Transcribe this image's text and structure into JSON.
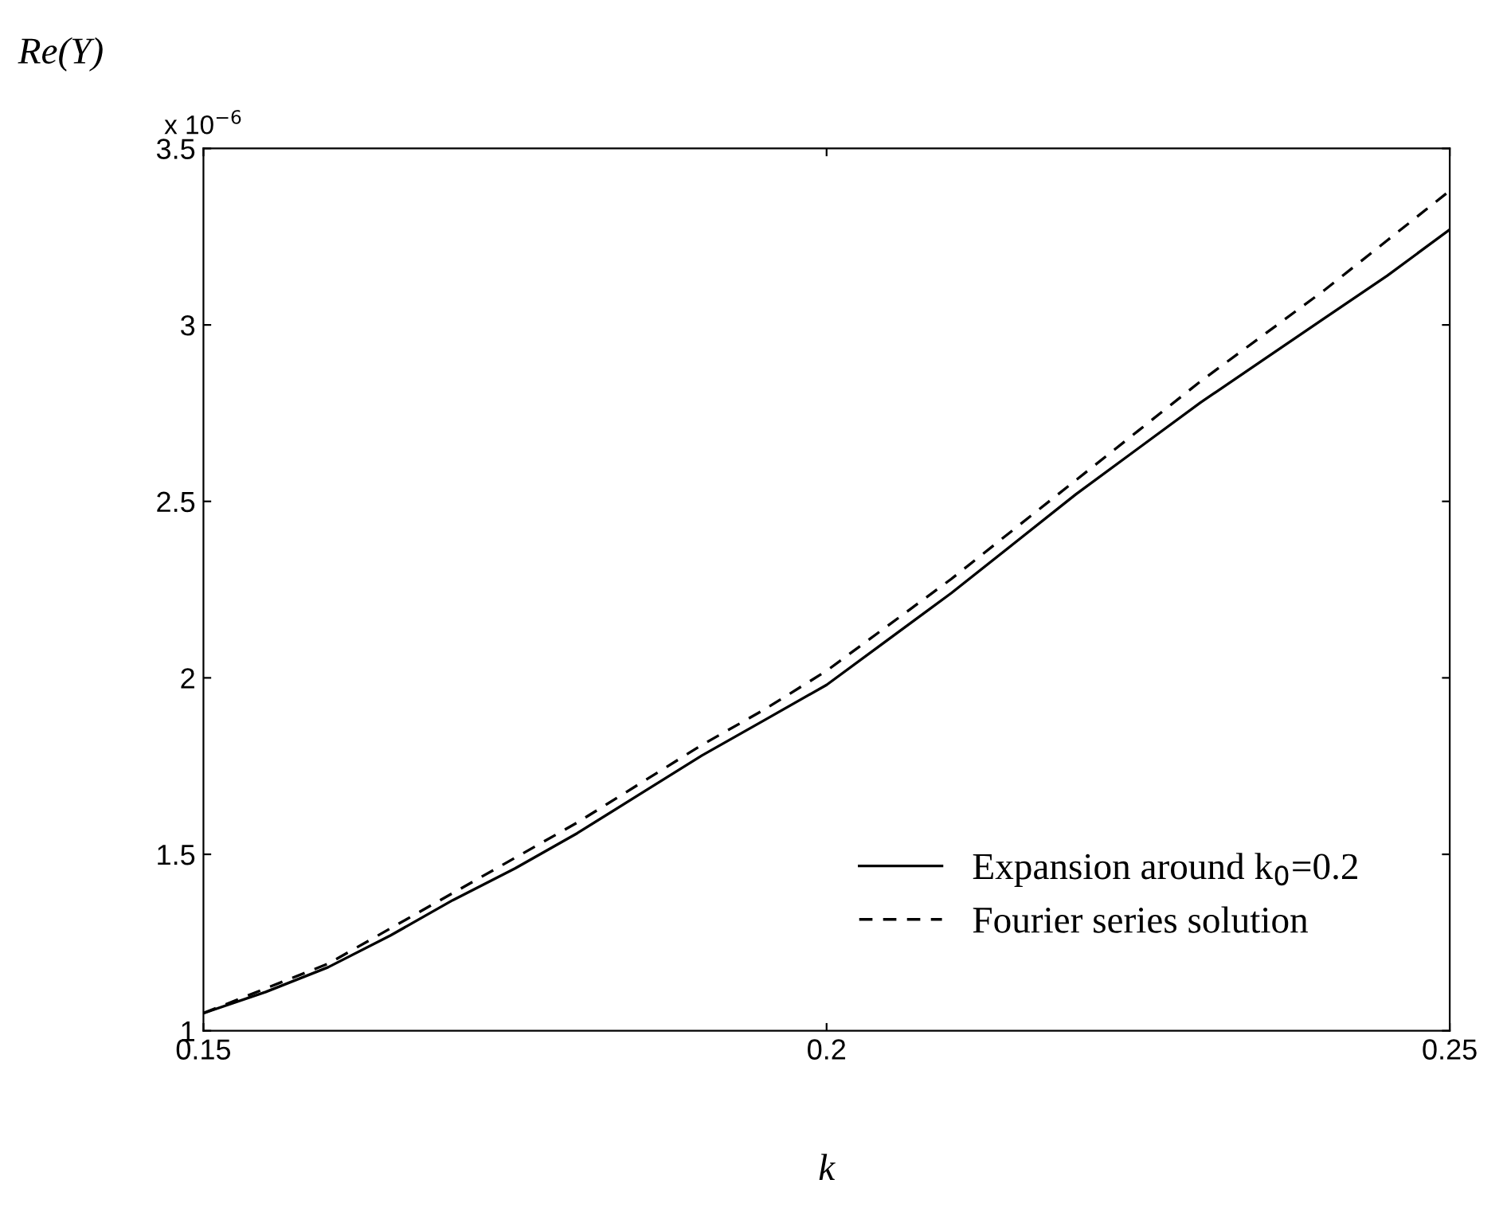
{
  "chart_data": {
    "type": "line",
    "ylabel": "Re(Y)",
    "xlabel": "k",
    "annotations": [
      "x 10$^{−6}$"
    ],
    "x": [
      0.15,
      0.155,
      0.16,
      0.165,
      0.17,
      0.175,
      0.18,
      0.185,
      0.19,
      0.195,
      0.2,
      0.205,
      0.21,
      0.215,
      0.22,
      0.225,
      0.23,
      0.235,
      0.24,
      0.245,
      0.25
    ],
    "series": [
      {
        "name": "Expansion around k$_{0}$=0.2",
        "color": "#000000",
        "line_style": "solid",
        "values": [
          1.05,
          1.11,
          1.18,
          1.27,
          1.37,
          1.46,
          1.56,
          1.67,
          1.78,
          1.88,
          1.98,
          2.11,
          2.24,
          2.38,
          2.52,
          2.65,
          2.78,
          2.9,
          3.02,
          3.14,
          3.27
        ]
      },
      {
        "name": "Fourier series solution",
        "color": "#000000",
        "line_style": "dashed",
        "values": [
          1.05,
          1.12,
          1.19,
          1.29,
          1.39,
          1.49,
          1.59,
          1.7,
          1.81,
          1.91,
          2.02,
          2.15,
          2.28,
          2.42,
          2.56,
          2.7,
          2.84,
          2.97,
          3.1,
          3.24,
          3.38
        ]
      }
    ],
    "xlim": [
      0.15,
      0.25
    ],
    "ylim": [
      1,
      3.5
    ],
    "xticks": [
      0.15,
      0.2,
      0.25
    ],
    "yticks": [
      1,
      1.5,
      2,
      2.5,
      3,
      3.5
    ],
    "legend": "bottom right",
    "grid": false
  }
}
